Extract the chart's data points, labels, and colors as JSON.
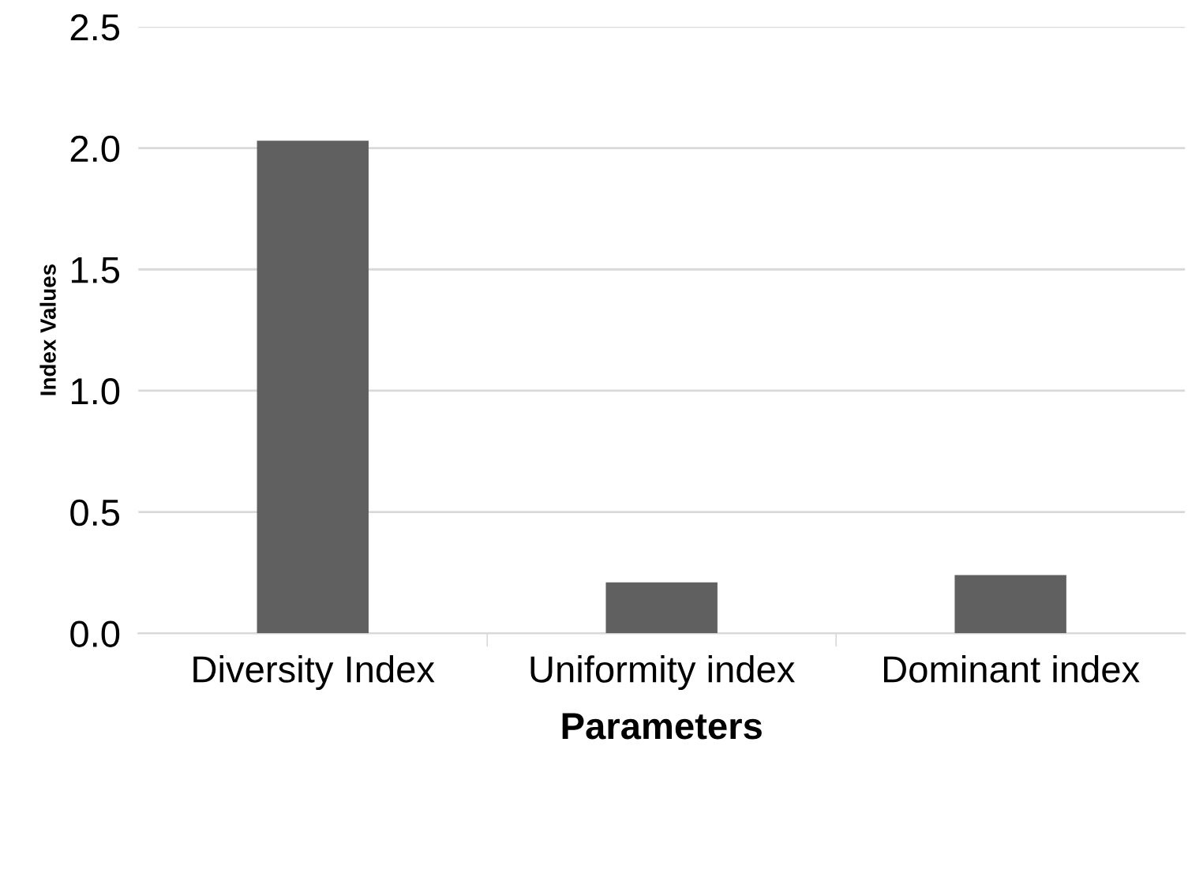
{
  "chart_data": {
    "type": "bar",
    "xlabel": "Parameters",
    "ylabel": "Index Values",
    "categories": [
      "Diversity Index",
      "Uniformity index",
      "Dominant index"
    ],
    "values": [
      2.03,
      0.21,
      0.24
    ],
    "color": "#606060",
    "ylim": [
      0,
      2.5
    ],
    "yticks": [
      {
        "value": 0,
        "label": "0.0"
      },
      {
        "value": 0.5,
        "label": "0.5"
      },
      {
        "value": 1,
        "label": "1.0"
      },
      {
        "value": 1.5,
        "label": "1.5"
      },
      {
        "value": 2,
        "label": "2.0"
      },
      {
        "value": 2.5,
        "label": "2.5"
      }
    ],
    "grid": "y",
    "legend": false
  }
}
